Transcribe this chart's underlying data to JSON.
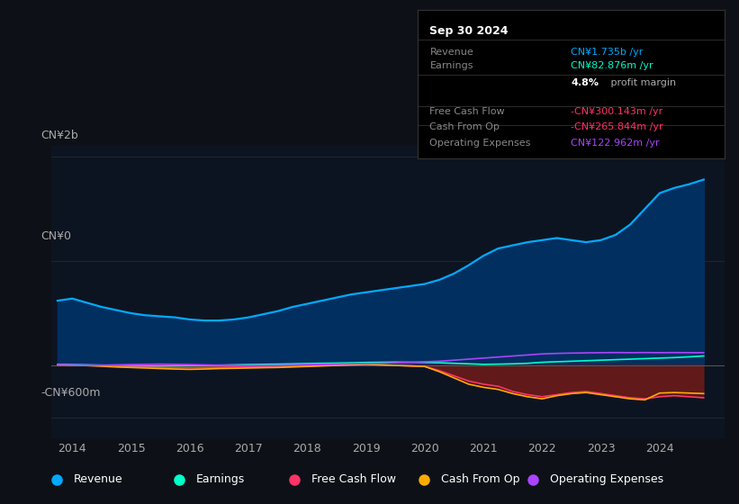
{
  "background_color": "#0d1117",
  "plot_bg_color": "#0d1421",
  "ylabel_top": "CN¥2b",
  "ylabel_mid": "CN¥0",
  "ylabel_bot": "-CN¥600m",
  "ylim": [
    -700,
    2100
  ],
  "years": [
    2013.75,
    2014,
    2014.25,
    2014.5,
    2014.75,
    2015,
    2015.25,
    2015.5,
    2015.75,
    2016,
    2016.25,
    2016.5,
    2016.75,
    2017,
    2017.25,
    2017.5,
    2017.75,
    2018,
    2018.25,
    2018.5,
    2018.75,
    2019,
    2019.25,
    2019.5,
    2019.75,
    2020,
    2020.25,
    2020.5,
    2020.75,
    2021,
    2021.25,
    2021.5,
    2021.75,
    2022,
    2022.25,
    2022.5,
    2022.75,
    2023,
    2023.25,
    2023.5,
    2023.75,
    2024,
    2024.25,
    2024.5,
    2024.75
  ],
  "revenue": [
    620,
    640,
    600,
    560,
    530,
    500,
    480,
    470,
    460,
    440,
    430,
    430,
    440,
    460,
    490,
    520,
    560,
    590,
    620,
    650,
    680,
    700,
    720,
    740,
    760,
    780,
    820,
    880,
    960,
    1050,
    1120,
    1150,
    1180,
    1200,
    1220,
    1200,
    1180,
    1200,
    1250,
    1350,
    1500,
    1650,
    1700,
    1735,
    1780
  ],
  "earnings": [
    10,
    8,
    5,
    2,
    0,
    -2,
    -5,
    -5,
    -3,
    -2,
    0,
    2,
    5,
    8,
    10,
    12,
    15,
    18,
    20,
    22,
    25,
    28,
    30,
    32,
    30,
    28,
    25,
    20,
    15,
    10,
    12,
    15,
    20,
    30,
    35,
    40,
    45,
    50,
    55,
    60,
    65,
    70,
    75,
    82,
    90
  ],
  "free_cash_flow": [
    5,
    3,
    0,
    -3,
    -8,
    -12,
    -15,
    -18,
    -20,
    -22,
    -20,
    -18,
    -15,
    -12,
    -10,
    -8,
    -5,
    -3,
    0,
    5,
    8,
    10,
    5,
    0,
    -5,
    -10,
    -50,
    -100,
    -150,
    -180,
    -200,
    -250,
    -280,
    -300,
    -280,
    -260,
    -250,
    -270,
    -290,
    -310,
    -320,
    -300,
    -290,
    -300,
    -310
  ],
  "cash_from_op": [
    5,
    2,
    -2,
    -8,
    -15,
    -20,
    -25,
    -30,
    -35,
    -38,
    -35,
    -30,
    -28,
    -25,
    -22,
    -20,
    -15,
    -10,
    -5,
    0,
    5,
    10,
    5,
    0,
    -5,
    -10,
    -60,
    -120,
    -180,
    -210,
    -230,
    -270,
    -300,
    -320,
    -290,
    -270,
    -260,
    -280,
    -300,
    -320,
    -330,
    -265,
    -260,
    -265,
    -270
  ],
  "operating_expenses": [
    5,
    3,
    0,
    2,
    5,
    8,
    10,
    12,
    10,
    8,
    5,
    2,
    0,
    -2,
    0,
    2,
    5,
    8,
    10,
    12,
    15,
    18,
    20,
    25,
    30,
    35,
    40,
    50,
    60,
    70,
    80,
    90,
    100,
    110,
    115,
    118,
    120,
    122,
    123,
    122,
    123,
    122,
    123,
    122,
    122
  ],
  "revenue_color": "#00aaff",
  "earnings_color": "#00ffcc",
  "free_cash_flow_color": "#ff3366",
  "cash_from_op_color": "#ffaa00",
  "op_expenses_color": "#aa44ff",
  "revenue_fill_color": "#003366",
  "negative_fill_color": "#6b1a1a",
  "info_box": {
    "bg_color": "#000000",
    "border_color": "#333333",
    "title": "Sep 30 2024",
    "rows": [
      {
        "label": "Revenue",
        "value": "CN¥1.735b /yr",
        "value_color": "#00aaff"
      },
      {
        "label": "Earnings",
        "value": "CN¥82.876m /yr",
        "value_color": "#00ffcc"
      },
      {
        "label": "",
        "value": "4.8% profit margin",
        "value_color": "#ffffff"
      },
      {
        "label": "Free Cash Flow",
        "value": "-CN¥300.143m /yr",
        "value_color": "#ff3366"
      },
      {
        "label": "Cash From Op",
        "value": "-CN¥265.844m /yr",
        "value_color": "#ff3366"
      },
      {
        "label": "Operating Expenses",
        "value": "CN¥122.962m /yr",
        "value_color": "#aa44ff"
      }
    ]
  },
  "legend_items": [
    {
      "label": "Revenue",
      "color": "#00aaff"
    },
    {
      "label": "Earnings",
      "color": "#00ffcc"
    },
    {
      "label": "Free Cash Flow",
      "color": "#ff3366"
    },
    {
      "label": "Cash From Op",
      "color": "#ffaa00"
    },
    {
      "label": "Operating Expenses",
      "color": "#aa44ff"
    }
  ],
  "xticks": [
    2014,
    2015,
    2016,
    2017,
    2018,
    2019,
    2020,
    2021,
    2022,
    2023,
    2024
  ],
  "hline_color": "#555555",
  "text_color": "#aaaaaa",
  "grid_color": "#1e2a3a"
}
